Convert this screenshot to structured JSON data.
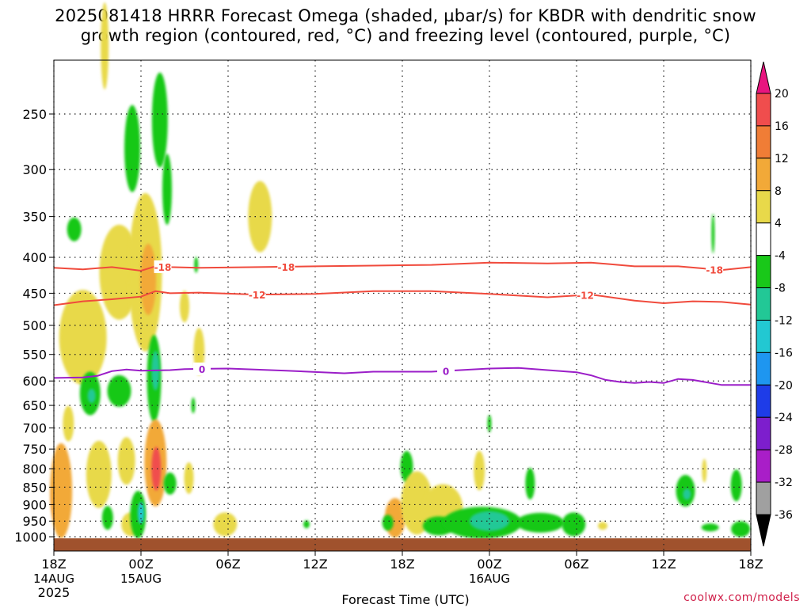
{
  "title": {
    "line1": "2025081418 HRRR Forecast Omega (shaded, µbar/s) for KBDR with dendritic snow",
    "line2": "growth region (contoured, red, °C) and freezing level (contoured, purple, °C)"
  },
  "credit": "coolwx.com/models",
  "chart_data": {
    "type": "heatmap",
    "xlabel": "Forecast Time (UTC)",
    "ylabel": "",
    "y_scale": "log-pressure (hPa, inverted)",
    "grid": "dotted",
    "x_ticks": [
      {
        "hour": 0,
        "label": "18Z",
        "sub1": "14AUG",
        "sub2": "2025"
      },
      {
        "hour": 6,
        "label": "00Z",
        "sub1": "15AUG",
        "sub2": ""
      },
      {
        "hour": 12,
        "label": "06Z",
        "sub1": "",
        "sub2": ""
      },
      {
        "hour": 18,
        "label": "12Z",
        "sub1": "",
        "sub2": ""
      },
      {
        "hour": 24,
        "label": "18Z",
        "sub1": "",
        "sub2": ""
      },
      {
        "hour": 30,
        "label": "00Z",
        "sub1": "16AUG",
        "sub2": ""
      },
      {
        "hour": 36,
        "label": "06Z",
        "sub1": "",
        "sub2": ""
      },
      {
        "hour": 42,
        "label": "12Z",
        "sub1": "",
        "sub2": ""
      },
      {
        "hour": 48,
        "label": "18Z",
        "sub1": "",
        "sub2": ""
      }
    ],
    "y_ticks": [
      250,
      300,
      350,
      400,
      450,
      500,
      550,
      600,
      650,
      700,
      750,
      800,
      850,
      900,
      950,
      1000
    ],
    "colorbar": {
      "bins": [
        {
          "from": 20,
          "to": 24,
          "color": "#e8157f"
        },
        {
          "from": 16,
          "to": 20,
          "color": "#f04d4d"
        },
        {
          "from": 12,
          "to": 16,
          "color": "#f07d36"
        },
        {
          "from": 8,
          "to": 12,
          "color": "#f2a938"
        },
        {
          "from": 4,
          "to": 8,
          "color": "#e8d94a"
        },
        {
          "from": -4,
          "to": 4,
          "color": "#ffffff"
        },
        {
          "from": -8,
          "to": -4,
          "color": "#19c819"
        },
        {
          "from": -12,
          "to": -8,
          "color": "#22c896"
        },
        {
          "from": -16,
          "to": -12,
          "color": "#22c8d2"
        },
        {
          "from": -20,
          "to": -16,
          "color": "#1e96f0"
        },
        {
          "from": -24,
          "to": -20,
          "color": "#1e3ce8"
        },
        {
          "from": -28,
          "to": -24,
          "color": "#7d1ecd"
        },
        {
          "from": -32,
          "to": -28,
          "color": "#a91ec8"
        },
        {
          "from": -36,
          "to": -32,
          "color": "#a0a0a0"
        },
        {
          "from": -40,
          "to": -36,
          "color": "#000000"
        }
      ],
      "labels": [
        "20",
        "16",
        "12",
        "8",
        "4",
        "-4",
        "-8",
        "-12",
        "-16",
        "-20",
        "-24",
        "-28",
        "-32",
        "-36"
      ]
    },
    "contours": [
      {
        "name": "-18",
        "color": "#f04a3c",
        "label_hours": [
          7.5,
          16,
          45.5
        ],
        "points": [
          [
            0,
            414
          ],
          [
            2,
            416
          ],
          [
            4,
            413
          ],
          [
            6,
            418
          ],
          [
            7,
            412
          ],
          [
            8,
            413
          ],
          [
            10,
            414
          ],
          [
            14,
            413
          ],
          [
            18,
            412
          ],
          [
            22,
            411
          ],
          [
            26,
            410
          ],
          [
            30,
            407
          ],
          [
            34,
            408
          ],
          [
            37,
            407
          ],
          [
            40,
            412
          ],
          [
            43,
            412
          ],
          [
            46,
            417
          ],
          [
            48,
            413
          ]
        ]
      },
      {
        "name": "-12",
        "color": "#f04a3c",
        "label_hours": [
          14,
          36.6
        ],
        "points": [
          [
            0,
            468
          ],
          [
            2,
            462
          ],
          [
            4,
            459
          ],
          [
            6,
            455
          ],
          [
            7,
            447
          ],
          [
            8,
            450
          ],
          [
            10,
            449
          ],
          [
            14,
            452
          ],
          [
            18,
            451
          ],
          [
            22,
            447
          ],
          [
            26,
            447
          ],
          [
            30,
            451
          ],
          [
            34,
            456
          ],
          [
            37,
            452
          ],
          [
            40,
            461
          ],
          [
            42,
            465
          ],
          [
            44,
            462
          ],
          [
            46,
            463
          ],
          [
            48,
            467
          ]
        ]
      },
      {
        "name": "0",
        "color": "#9b1ec8",
        "label_hours": [
          10.2,
          27
        ],
        "points": [
          [
            0,
            594
          ],
          [
            2,
            593
          ],
          [
            3,
            590
          ],
          [
            4,
            581
          ],
          [
            5,
            578
          ],
          [
            6,
            580
          ],
          [
            8,
            579
          ],
          [
            9,
            577
          ],
          [
            12,
            576
          ],
          [
            16,
            580
          ],
          [
            20,
            585
          ],
          [
            22,
            582
          ],
          [
            26,
            582
          ],
          [
            30,
            576
          ],
          [
            32,
            575
          ],
          [
            34,
            579
          ],
          [
            36,
            583
          ],
          [
            37,
            589
          ],
          [
            38,
            598
          ],
          [
            39,
            602
          ],
          [
            40,
            604
          ],
          [
            41,
            602
          ],
          [
            42,
            604
          ],
          [
            43,
            596
          ],
          [
            44,
            598
          ],
          [
            46,
            608
          ],
          [
            48,
            608
          ]
        ]
      }
    ],
    "omega_cells": [
      {
        "hour": 0.2,
        "p": 882,
        "w": 12,
        "h": 58,
        "value": 18
      },
      {
        "hour": 0.5,
        "p": 860,
        "w": 28,
        "h": 120,
        "value": 8
      },
      {
        "hour": 1.0,
        "p": 690,
        "w": 14,
        "h": 45,
        "value": 4
      },
      {
        "hour": 1.4,
        "p": 365,
        "w": 18,
        "h": 30,
        "value": -6
      },
      {
        "hour": 2.0,
        "p": 520,
        "w": 60,
        "h": 120,
        "value": 4
      },
      {
        "hour": 2.5,
        "p": 625,
        "w": 26,
        "h": 55,
        "value": -6
      },
      {
        "hour": 2.6,
        "p": 630,
        "w": 10,
        "h": 18,
        "value": -10
      },
      {
        "hour": 3.0,
        "p": 810,
        "w": 12,
        "h": 40,
        "value": 14
      },
      {
        "hour": 3.1,
        "p": 815,
        "w": 32,
        "h": 85,
        "value": 6
      },
      {
        "hour": 3.5,
        "p": 200,
        "w": 10,
        "h": 110,
        "value": 4
      },
      {
        "hour": 3.7,
        "p": 940,
        "w": 14,
        "h": 30,
        "value": -5
      },
      {
        "hour": 4.5,
        "p": 620,
        "w": 30,
        "h": 40,
        "value": -6
      },
      {
        "hour": 4.5,
        "p": 420,
        "w": 50,
        "h": 120,
        "value": 4
      },
      {
        "hour": 5.0,
        "p": 780,
        "w": 22,
        "h": 60,
        "value": 5
      },
      {
        "hour": 5.3,
        "p": 960,
        "w": 24,
        "h": 30,
        "value": 4
      },
      {
        "hour": 5.4,
        "p": 280,
        "w": 20,
        "h": 110,
        "value": -6
      },
      {
        "hour": 5.8,
        "p": 930,
        "w": 20,
        "h": 60,
        "value": -6
      },
      {
        "hour": 6.0,
        "p": 925,
        "w": 8,
        "h": 28,
        "value": -16
      },
      {
        "hour": 6.3,
        "p": 420,
        "w": 42,
        "h": 200,
        "value": 5
      },
      {
        "hour": 6.5,
        "p": 430,
        "w": 20,
        "h": 90,
        "value": 9
      },
      {
        "hour": 6.9,
        "p": 595,
        "w": 18,
        "h": 110,
        "value": -6
      },
      {
        "hour": 7.0,
        "p": 580,
        "w": 10,
        "h": 50,
        "value": -12
      },
      {
        "hour": 7.0,
        "p": 785,
        "w": 28,
        "h": 110,
        "value": 8
      },
      {
        "hour": 7.05,
        "p": 800,
        "w": 12,
        "h": 55,
        "value": 18
      },
      {
        "hour": 7.3,
        "p": 255,
        "w": 20,
        "h": 120,
        "value": -6
      },
      {
        "hour": 7.8,
        "p": 320,
        "w": 12,
        "h": 90,
        "value": -5
      },
      {
        "hour": 8.0,
        "p": 840,
        "w": 16,
        "h": 28,
        "value": -6
      },
      {
        "hour": 9.0,
        "p": 470,
        "w": 12,
        "h": 40,
        "value": 5
      },
      {
        "hour": 9.3,
        "p": 825,
        "w": 12,
        "h": 40,
        "value": 5
      },
      {
        "hour": 9.6,
        "p": 650,
        "w": 5,
        "h": 20,
        "value": -6
      },
      {
        "hour": 9.8,
        "p": 410,
        "w": 5,
        "h": 20,
        "value": -6
      },
      {
        "hour": 10.0,
        "p": 545,
        "w": 14,
        "h": 60,
        "value": 4
      },
      {
        "hour": 11.8,
        "p": 960,
        "w": 30,
        "h": 30,
        "value": 5
      },
      {
        "hour": 14.2,
        "p": 350,
        "w": 30,
        "h": 90,
        "value": 4
      },
      {
        "hour": 17.4,
        "p": 960,
        "w": 8,
        "h": 10,
        "value": -6
      },
      {
        "hour": 23.5,
        "p": 940,
        "w": 26,
        "h": 50,
        "value": 9
      },
      {
        "hour": 23.0,
        "p": 955,
        "w": 14,
        "h": 20,
        "value": -6
      },
      {
        "hour": 24.3,
        "p": 795,
        "w": 16,
        "h": 40,
        "value": -6
      },
      {
        "hour": 25.0,
        "p": 895,
        "w": 40,
        "h": 80,
        "value": 5
      },
      {
        "hour": 26.8,
        "p": 910,
        "w": 50,
        "h": 60,
        "value": 6
      },
      {
        "hour": 26.5,
        "p": 965,
        "w": 40,
        "h": 24,
        "value": -6
      },
      {
        "hour": 29.5,
        "p": 955,
        "w": 100,
        "h": 40,
        "value": -7
      },
      {
        "hour": 30.0,
        "p": 950,
        "w": 50,
        "h": 25,
        "value": -10
      },
      {
        "hour": 29.3,
        "p": 805,
        "w": 14,
        "h": 50,
        "value": 6
      },
      {
        "hour": 30.0,
        "p": 690,
        "w": 5,
        "h": 22,
        "value": -6
      },
      {
        "hour": 32.8,
        "p": 840,
        "w": 12,
        "h": 40,
        "value": -6
      },
      {
        "hour": 33.5,
        "p": 955,
        "w": 60,
        "h": 25,
        "value": -6
      },
      {
        "hour": 35.8,
        "p": 960,
        "w": 30,
        "h": 30,
        "value": -6
      },
      {
        "hour": 37.8,
        "p": 965,
        "w": 12,
        "h": 10,
        "value": 5
      },
      {
        "hour": 43.5,
        "p": 860,
        "w": 24,
        "h": 40,
        "value": -6
      },
      {
        "hour": 43.6,
        "p": 870,
        "w": 10,
        "h": 14,
        "value": -10
      },
      {
        "hour": 44.8,
        "p": 805,
        "w": 6,
        "h": 30,
        "value": 5
      },
      {
        "hour": 45.4,
        "p": 370,
        "w": 4,
        "h": 50,
        "value": -6
      },
      {
        "hour": 45.2,
        "p": 970,
        "w": 22,
        "h": 10,
        "value": -6
      },
      {
        "hour": 47.0,
        "p": 845,
        "w": 14,
        "h": 40,
        "value": -6
      },
      {
        "hour": 47.3,
        "p": 975,
        "w": 24,
        "h": 20,
        "value": -6
      }
    ]
  }
}
